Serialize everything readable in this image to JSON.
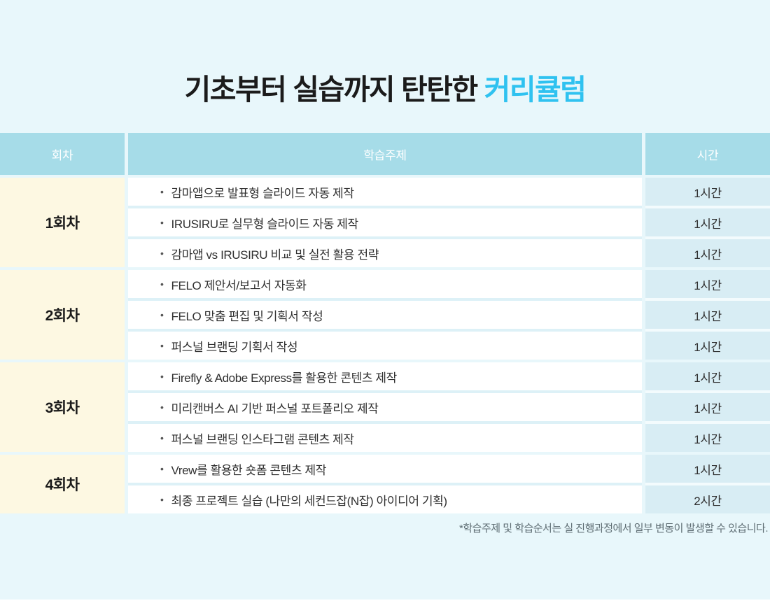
{
  "title": {
    "main": "기초부터 실습까지 탄탄한 ",
    "accent": "커리큘럼"
  },
  "bullet": "•",
  "table": {
    "headers": {
      "session": "회차",
      "topic": "학습주제",
      "time": "시간"
    },
    "sessions": [
      {
        "label": "1회차",
        "rows": [
          {
            "topic": "감마앱으로 발표형 슬라이드 자동 제작",
            "time": "1시간"
          },
          {
            "topic": "IRUSIRU로 실무형 슬라이드 자동 제작",
            "time": "1시간"
          },
          {
            "topic": "감마앱 vs IRUSIRU 비교 및 실전 활용 전략",
            "time": "1시간"
          }
        ]
      },
      {
        "label": "2회차",
        "rows": [
          {
            "topic": "FELO 제안서/보고서 자동화",
            "time": "1시간"
          },
          {
            "topic": "FELO 맞춤 편집 및 기획서 작성",
            "time": "1시간"
          },
          {
            "topic": "퍼스널 브랜딩 기획서 작성",
            "time": "1시간"
          }
        ]
      },
      {
        "label": "3회차",
        "rows": [
          {
            "topic": "Firefly & Adobe Express를 활용한 콘텐츠 제작",
            "time": "1시간"
          },
          {
            "topic": "미리캔버스 AI 기반 퍼스널 포트폴리오 제작",
            "time": "1시간"
          },
          {
            "topic": "퍼스널 브랜딩 인스타그램 콘텐츠 제작",
            "time": "1시간"
          }
        ]
      },
      {
        "label": "4회차",
        "rows": [
          {
            "topic": "Vrew를 활용한 숏폼 콘텐츠 제작",
            "time": "1시간"
          },
          {
            "topic": "최종 프로젝트 실습 (나만의 세컨드잡(N잡) 아이디어 기획)",
            "time": "2시간"
          }
        ]
      }
    ]
  },
  "footnote": "*학습주제 및 학습순서는 실 진행과정에서 일부 변동이 발생할 수 있습니다.",
  "colors": {
    "page_background": "#e8f7fb",
    "header_background": "#a6dce8",
    "session_background": "#fdf8e2",
    "time_cell_background": "#d8edf4",
    "title_accent": "#2fc2f0",
    "title_text": "#1b1b1b",
    "body_text": "#2f2f2f",
    "footnote_text": "#5f6e74"
  }
}
